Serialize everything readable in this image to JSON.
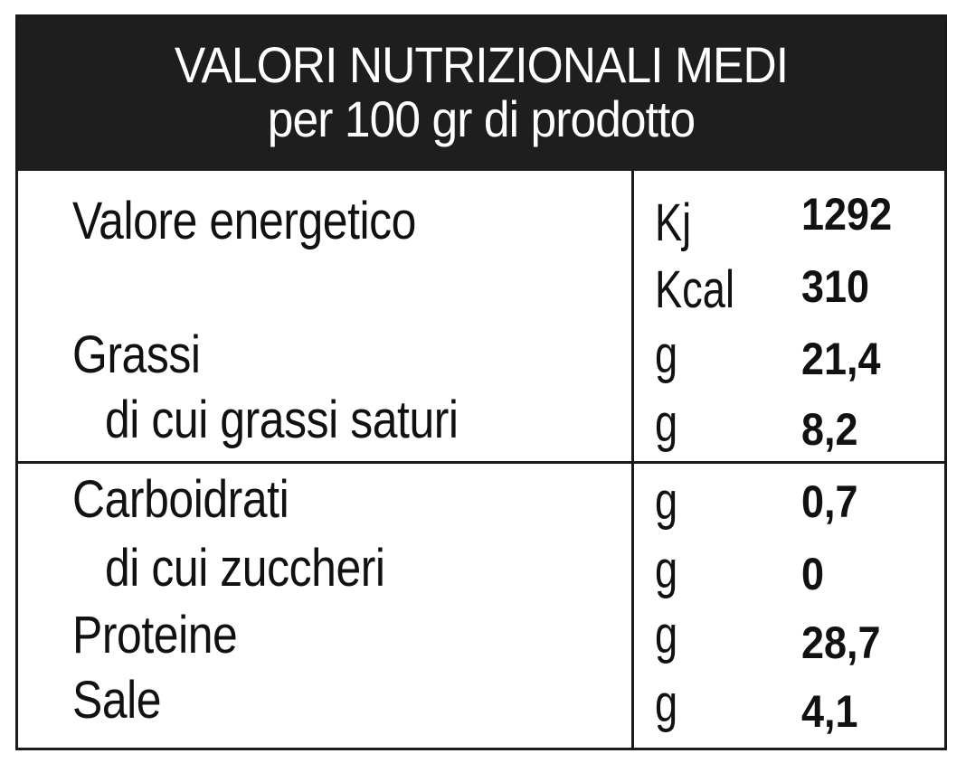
{
  "header": {
    "title": "VALORI NUTRIZIONALI MEDI",
    "subtitle": "per 100 gr di prodotto"
  },
  "rows": [
    {
      "name": "Valore energetico",
      "unit": "Kj",
      "value": "1292"
    },
    {
      "name": "",
      "unit": "Kcal",
      "value": "310"
    },
    {
      "name": "Grassi",
      "unit": "g",
      "value": "21,4"
    },
    {
      "name": "di cui grassi saturi",
      "unit": "g",
      "value": "8,2"
    },
    {
      "name": "Carboidrati",
      "unit": "g",
      "value": "0,7"
    },
    {
      "name": "di cui zuccheri",
      "unit": "g",
      "value": "0"
    },
    {
      "name": "Proteine",
      "unit": "g",
      "value": "28,7"
    },
    {
      "name": "Sale",
      "unit": "g",
      "value": "4,1"
    }
  ]
}
